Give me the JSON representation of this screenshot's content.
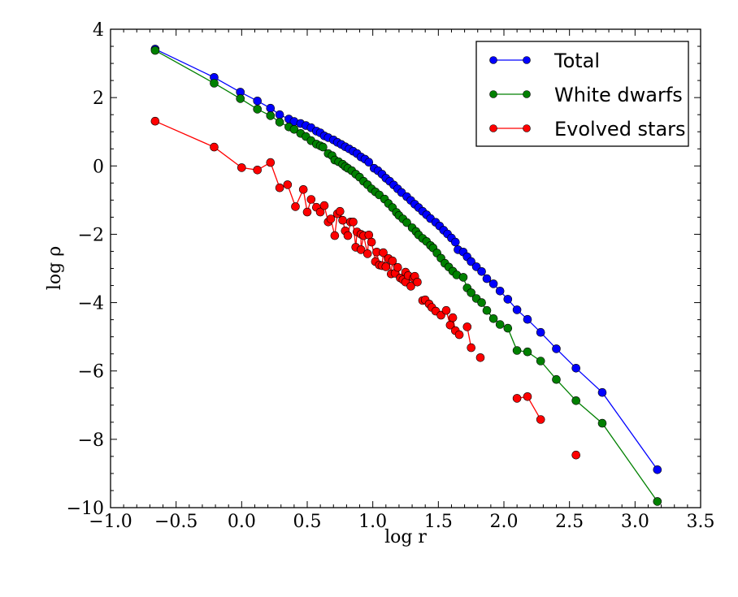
{
  "chart_data": {
    "type": "line",
    "title": "",
    "xlabel": "log r",
    "ylabel": "log ρ",
    "xlim": [
      -1.0,
      3.5
    ],
    "ylim": [
      -10,
      4
    ],
    "xticks": [
      "−1.0",
      "−0.5",
      "0.0",
      "0.5",
      "1.0",
      "1.5",
      "2.0",
      "2.5",
      "3.0",
      "3.5"
    ],
    "xtick_values": [
      -1.0,
      -0.5,
      0.0,
      0.5,
      1.0,
      1.5,
      2.0,
      2.5,
      3.0,
      3.5
    ],
    "yticks": [
      "4",
      "2",
      "0",
      "−2",
      "−4",
      "−6",
      "−8",
      "−10"
    ],
    "ytick_values": [
      4,
      2,
      0,
      -2,
      -4,
      -6,
      -8,
      -10
    ],
    "grid": false,
    "legend_position": "top-right",
    "series": [
      {
        "name": "Total",
        "color": "#0000ff",
        "points": [
          [
            -0.66,
            3.42
          ],
          [
            -0.21,
            2.59
          ],
          [
            -0.01,
            2.16
          ],
          [
            0.12,
            1.9
          ],
          [
            0.22,
            1.69
          ],
          [
            0.29,
            1.5
          ],
          [
            0.36,
            1.37
          ],
          [
            0.4,
            1.3
          ],
          [
            0.45,
            1.24
          ],
          [
            0.49,
            1.18
          ],
          [
            0.53,
            1.12
          ],
          [
            0.57,
            1.02
          ],
          [
            0.6,
            0.97
          ],
          [
            0.63,
            0.88
          ],
          [
            0.66,
            0.83
          ],
          [
            0.7,
            0.76
          ],
          [
            0.73,
            0.69
          ],
          [
            0.76,
            0.63
          ],
          [
            0.79,
            0.56
          ],
          [
            0.82,
            0.5
          ],
          [
            0.85,
            0.43
          ],
          [
            0.88,
            0.36
          ],
          [
            0.91,
            0.26
          ],
          [
            0.94,
            0.2
          ],
          [
            0.97,
            0.11
          ],
          [
            1.01,
            -0.07
          ],
          [
            1.04,
            -0.14
          ],
          [
            1.07,
            -0.24
          ],
          [
            1.1,
            -0.36
          ],
          [
            1.13,
            -0.45
          ],
          [
            1.16,
            -0.56
          ],
          [
            1.19,
            -0.67
          ],
          [
            1.22,
            -0.78
          ],
          [
            1.26,
            -0.9
          ],
          [
            1.29,
            -1.01
          ],
          [
            1.32,
            -1.12
          ],
          [
            1.35,
            -1.22
          ],
          [
            1.38,
            -1.33
          ],
          [
            1.41,
            -1.43
          ],
          [
            1.44,
            -1.54
          ],
          [
            1.48,
            -1.65
          ],
          [
            1.51,
            -1.76
          ],
          [
            1.54,
            -1.88
          ],
          [
            1.57,
            -1.99
          ],
          [
            1.6,
            -2.11
          ],
          [
            1.63,
            -2.23
          ],
          [
            1.65,
            -2.45
          ],
          [
            1.69,
            -2.52
          ],
          [
            1.72,
            -2.66
          ],
          [
            1.75,
            -2.8
          ],
          [
            1.79,
            -2.95
          ],
          [
            1.83,
            -3.09
          ],
          [
            1.87,
            -3.3
          ],
          [
            1.92,
            -3.45
          ],
          [
            1.97,
            -3.66
          ],
          [
            2.03,
            -3.9
          ],
          [
            2.1,
            -4.21
          ],
          [
            2.18,
            -4.49
          ],
          [
            2.28,
            -4.87
          ],
          [
            2.4,
            -5.35
          ],
          [
            2.55,
            -5.92
          ],
          [
            2.75,
            -6.63
          ],
          [
            3.17,
            -8.89
          ]
        ]
      },
      {
        "name": "White dwarfs",
        "color": "#008000",
        "points": [
          [
            -0.66,
            3.38
          ],
          [
            -0.21,
            2.42
          ],
          [
            -0.01,
            1.97
          ],
          [
            0.12,
            1.66
          ],
          [
            0.22,
            1.47
          ],
          [
            0.29,
            1.28
          ],
          [
            0.36,
            1.14
          ],
          [
            0.4,
            1.07
          ],
          [
            0.45,
            0.95
          ],
          [
            0.49,
            0.86
          ],
          [
            0.53,
            0.74
          ],
          [
            0.57,
            0.64
          ],
          [
            0.6,
            0.59
          ],
          [
            0.62,
            0.55
          ],
          [
            0.66,
            0.36
          ],
          [
            0.69,
            0.3
          ],
          [
            0.71,
            0.17
          ],
          [
            0.74,
            0.12
          ],
          [
            0.77,
            0.05
          ],
          [
            0.79,
            -0.02
          ],
          [
            0.81,
            -0.07
          ],
          [
            0.84,
            -0.14
          ],
          [
            0.87,
            -0.24
          ],
          [
            0.9,
            -0.33
          ],
          [
            0.93,
            -0.45
          ],
          [
            0.96,
            -0.55
          ],
          [
            0.99,
            -0.67
          ],
          [
            1.02,
            -0.76
          ],
          [
            1.05,
            -0.85
          ],
          [
            1.09,
            -0.97
          ],
          [
            1.12,
            -1.1
          ],
          [
            1.15,
            -1.22
          ],
          [
            1.18,
            -1.36
          ],
          [
            1.2,
            -1.45
          ],
          [
            1.23,
            -1.55
          ],
          [
            1.26,
            -1.66
          ],
          [
            1.3,
            -1.81
          ],
          [
            1.33,
            -1.92
          ],
          [
            1.35,
            -2.02
          ],
          [
            1.38,
            -2.12
          ],
          [
            1.41,
            -2.21
          ],
          [
            1.44,
            -2.33
          ],
          [
            1.46,
            -2.4
          ],
          [
            1.49,
            -2.55
          ],
          [
            1.52,
            -2.7
          ],
          [
            1.55,
            -2.85
          ],
          [
            1.58,
            -2.96
          ],
          [
            1.61,
            -3.08
          ],
          [
            1.64,
            -3.19
          ],
          [
            1.69,
            -3.26
          ],
          [
            1.72,
            -3.57
          ],
          [
            1.75,
            -3.71
          ],
          [
            1.79,
            -3.88
          ],
          [
            1.83,
            -4.0
          ],
          [
            1.87,
            -4.23
          ],
          [
            1.92,
            -4.47
          ],
          [
            1.97,
            -4.64
          ],
          [
            2.03,
            -4.75
          ],
          [
            2.1,
            -5.4
          ],
          [
            2.18,
            -5.44
          ],
          [
            2.28,
            -5.71
          ],
          [
            2.4,
            -6.25
          ],
          [
            2.55,
            -6.87
          ],
          [
            2.75,
            -7.53
          ],
          [
            3.17,
            -9.82
          ]
        ]
      },
      {
        "name": "Evolved stars",
        "color": "#ff0000",
        "points": [
          [
            -0.66,
            1.31
          ],
          [
            -0.21,
            0.55
          ],
          [
            0.0,
            -0.05
          ],
          [
            0.12,
            -0.12
          ],
          [
            0.22,
            0.1
          ],
          [
            0.29,
            -0.64
          ],
          [
            0.35,
            -0.55
          ],
          [
            0.41,
            -1.19
          ],
          [
            0.47,
            -0.69
          ],
          [
            0.5,
            -1.35
          ],
          [
            0.53,
            -0.98
          ],
          [
            0.57,
            -1.21
          ],
          [
            0.6,
            -1.35
          ],
          [
            0.63,
            -1.16
          ],
          [
            0.66,
            -1.64
          ],
          [
            0.68,
            -1.55
          ],
          [
            0.71,
            -2.04
          ],
          [
            0.73,
            -1.4
          ],
          [
            0.75,
            -1.33
          ],
          [
            0.77,
            -1.59
          ],
          [
            0.79,
            -1.9
          ],
          [
            0.81,
            -2.04
          ],
          [
            0.83,
            -1.64
          ],
          [
            0.85,
            -1.64
          ],
          [
            0.87,
            -2.38
          ],
          [
            0.88,
            -1.93
          ],
          [
            0.91,
            -2.0
          ],
          [
            0.91,
            -2.45
          ],
          [
            0.93,
            -2.04
          ],
          [
            0.96,
            -2.57
          ],
          [
            0.97,
            -2.02
          ],
          [
            0.99,
            -2.23
          ],
          [
            1.02,
            -2.8
          ],
          [
            1.03,
            -2.52
          ],
          [
            1.05,
            -2.9
          ],
          [
            1.07,
            -2.92
          ],
          [
            1.08,
            -2.54
          ],
          [
            1.1,
            -2.95
          ],
          [
            1.12,
            -2.71
          ],
          [
            1.14,
            -3.16
          ],
          [
            1.15,
            -2.78
          ],
          [
            1.17,
            -3.14
          ],
          [
            1.19,
            -2.97
          ],
          [
            1.21,
            -3.28
          ],
          [
            1.23,
            -3.33
          ],
          [
            1.25,
            -3.11
          ],
          [
            1.25,
            -3.4
          ],
          [
            1.27,
            -3.21
          ],
          [
            1.29,
            -3.52
          ],
          [
            1.31,
            -3.28
          ],
          [
            1.32,
            -3.23
          ],
          [
            1.34,
            -3.4
          ],
          null,
          [
            1.38,
            -3.94
          ],
          [
            1.4,
            -3.92
          ],
          [
            1.43,
            -4.04
          ],
          [
            1.45,
            -4.14
          ],
          [
            1.48,
            -4.25
          ],
          [
            1.52,
            -4.37
          ],
          [
            1.56,
            -4.23
          ],
          [
            1.59,
            -4.66
          ],
          [
            1.61,
            -4.44
          ],
          [
            1.63,
            -4.82
          ],
          [
            1.66,
            -4.94
          ],
          null,
          [
            1.72,
            -4.71
          ],
          [
            1.75,
            -5.32
          ],
          null,
          [
            1.82,
            -5.61
          ],
          null,
          [
            2.1,
            -6.8
          ],
          [
            2.18,
            -6.75
          ],
          [
            2.28,
            -7.42
          ],
          null,
          [
            2.55,
            -8.46
          ]
        ]
      }
    ]
  }
}
